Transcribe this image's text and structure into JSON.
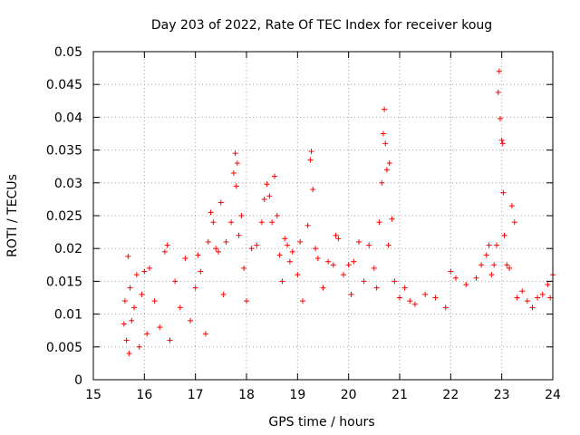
{
  "chart_data": {
    "type": "scatter",
    "title": "Day 203 of 2022, Rate Of TEC Index for receiver koug",
    "xlabel": "GPS time / hours",
    "ylabel": "ROTI / TECUs",
    "xlim": [
      15,
      24
    ],
    "ylim": [
      0,
      0.05
    ],
    "grid": true,
    "marker": "+",
    "color": "#ff0000",
    "x_ticks": [
      "15",
      "16",
      "17",
      "18",
      "19",
      "20",
      "21",
      "22",
      "23",
      "24"
    ],
    "y_ticks": [
      "0",
      "0.005",
      "0.01",
      "0.015",
      "0.02",
      "0.025",
      "0.03",
      "0.035",
      "0.04",
      "0.045",
      "0.05"
    ],
    "series": [
      {
        "name": "ROTI",
        "points": [
          [
            15.6,
            0.0085
          ],
          [
            15.62,
            0.012
          ],
          [
            15.65,
            0.006
          ],
          [
            15.68,
            0.0188
          ],
          [
            15.7,
            0.004
          ],
          [
            15.72,
            0.014
          ],
          [
            15.75,
            0.009
          ],
          [
            15.8,
            0.011
          ],
          [
            15.85,
            0.016
          ],
          [
            15.9,
            0.005
          ],
          [
            15.95,
            0.013
          ],
          [
            16.0,
            0.0165
          ],
          [
            16.05,
            0.007
          ],
          [
            16.1,
            0.017
          ],
          [
            16.2,
            0.012
          ],
          [
            16.3,
            0.008
          ],
          [
            16.4,
            0.0195
          ],
          [
            16.45,
            0.0205
          ],
          [
            16.5,
            0.006
          ],
          [
            16.6,
            0.015
          ],
          [
            16.7,
            0.011
          ],
          [
            16.8,
            0.0185
          ],
          [
            16.9,
            0.009
          ],
          [
            17.0,
            0.014
          ],
          [
            17.05,
            0.019
          ],
          [
            17.1,
            0.0165
          ],
          [
            17.2,
            0.007
          ],
          [
            17.25,
            0.021
          ],
          [
            17.3,
            0.0255
          ],
          [
            17.35,
            0.024
          ],
          [
            17.4,
            0.02
          ],
          [
            17.45,
            0.0195
          ],
          [
            17.5,
            0.027
          ],
          [
            17.55,
            0.013
          ],
          [
            17.6,
            0.021
          ],
          [
            17.7,
            0.024
          ],
          [
            17.75,
            0.0315
          ],
          [
            17.78,
            0.0345
          ],
          [
            17.8,
            0.0295
          ],
          [
            17.82,
            0.033
          ],
          [
            17.85,
            0.022
          ],
          [
            17.9,
            0.025
          ],
          [
            17.95,
            0.017
          ],
          [
            18.0,
            0.012
          ],
          [
            18.1,
            0.02
          ],
          [
            18.2,
            0.0205
          ],
          [
            18.3,
            0.024
          ],
          [
            18.35,
            0.0275
          ],
          [
            18.4,
            0.0298
          ],
          [
            18.45,
            0.028
          ],
          [
            18.5,
            0.024
          ],
          [
            18.55,
            0.031
          ],
          [
            18.6,
            0.025
          ],
          [
            18.65,
            0.019
          ],
          [
            18.7,
            0.015
          ],
          [
            18.75,
            0.0215
          ],
          [
            18.8,
            0.0205
          ],
          [
            18.85,
            0.018
          ],
          [
            18.9,
            0.0195
          ],
          [
            19.0,
            0.016
          ],
          [
            19.05,
            0.021
          ],
          [
            19.1,
            0.012
          ],
          [
            19.2,
            0.0235
          ],
          [
            19.25,
            0.0335
          ],
          [
            19.27,
            0.0348
          ],
          [
            19.3,
            0.029
          ],
          [
            19.35,
            0.02
          ],
          [
            19.4,
            0.0185
          ],
          [
            19.5,
            0.014
          ],
          [
            19.6,
            0.018
          ],
          [
            19.7,
            0.0175
          ],
          [
            19.75,
            0.022
          ],
          [
            19.8,
            0.0215
          ],
          [
            19.9,
            0.016
          ],
          [
            20.0,
            0.0175
          ],
          [
            20.05,
            0.013
          ],
          [
            20.1,
            0.018
          ],
          [
            20.2,
            0.021
          ],
          [
            20.3,
            0.015
          ],
          [
            20.4,
            0.0205
          ],
          [
            20.5,
            0.017
          ],
          [
            20.55,
            0.014
          ],
          [
            20.6,
            0.024
          ],
          [
            20.65,
            0.03
          ],
          [
            20.68,
            0.0375
          ],
          [
            20.7,
            0.0412
          ],
          [
            20.72,
            0.036
          ],
          [
            20.75,
            0.032
          ],
          [
            20.78,
            0.0205
          ],
          [
            20.8,
            0.033
          ],
          [
            20.85,
            0.0245
          ],
          [
            20.9,
            0.015
          ],
          [
            21.0,
            0.0125
          ],
          [
            21.1,
            0.014
          ],
          [
            21.2,
            0.012
          ],
          [
            21.3,
            0.0115
          ],
          [
            21.5,
            0.013
          ],
          [
            21.7,
            0.0125
          ],
          [
            21.9,
            0.011
          ],
          [
            22.0,
            0.0165
          ],
          [
            22.1,
            0.0155
          ],
          [
            22.3,
            0.0145
          ],
          [
            22.5,
            0.0155
          ],
          [
            22.6,
            0.0175
          ],
          [
            22.7,
            0.019
          ],
          [
            22.75,
            0.0205
          ],
          [
            22.8,
            0.016
          ],
          [
            22.85,
            0.0175
          ],
          [
            22.9,
            0.0205
          ],
          [
            22.93,
            0.0438
          ],
          [
            22.95,
            0.047
          ],
          [
            22.97,
            0.0398
          ],
          [
            23.0,
            0.0365
          ],
          [
            23.02,
            0.036
          ],
          [
            23.03,
            0.0285
          ],
          [
            23.05,
            0.022
          ],
          [
            23.1,
            0.0175
          ],
          [
            23.15,
            0.017
          ],
          [
            23.2,
            0.0265
          ],
          [
            23.25,
            0.024
          ],
          [
            23.3,
            0.0125
          ],
          [
            23.4,
            0.0135
          ],
          [
            23.5,
            0.012
          ],
          [
            23.6,
            0.011
          ],
          [
            23.7,
            0.0125
          ],
          [
            23.8,
            0.013
          ],
          [
            23.9,
            0.0145
          ],
          [
            23.95,
            0.0125
          ],
          [
            24.0,
            0.016
          ]
        ]
      }
    ]
  }
}
